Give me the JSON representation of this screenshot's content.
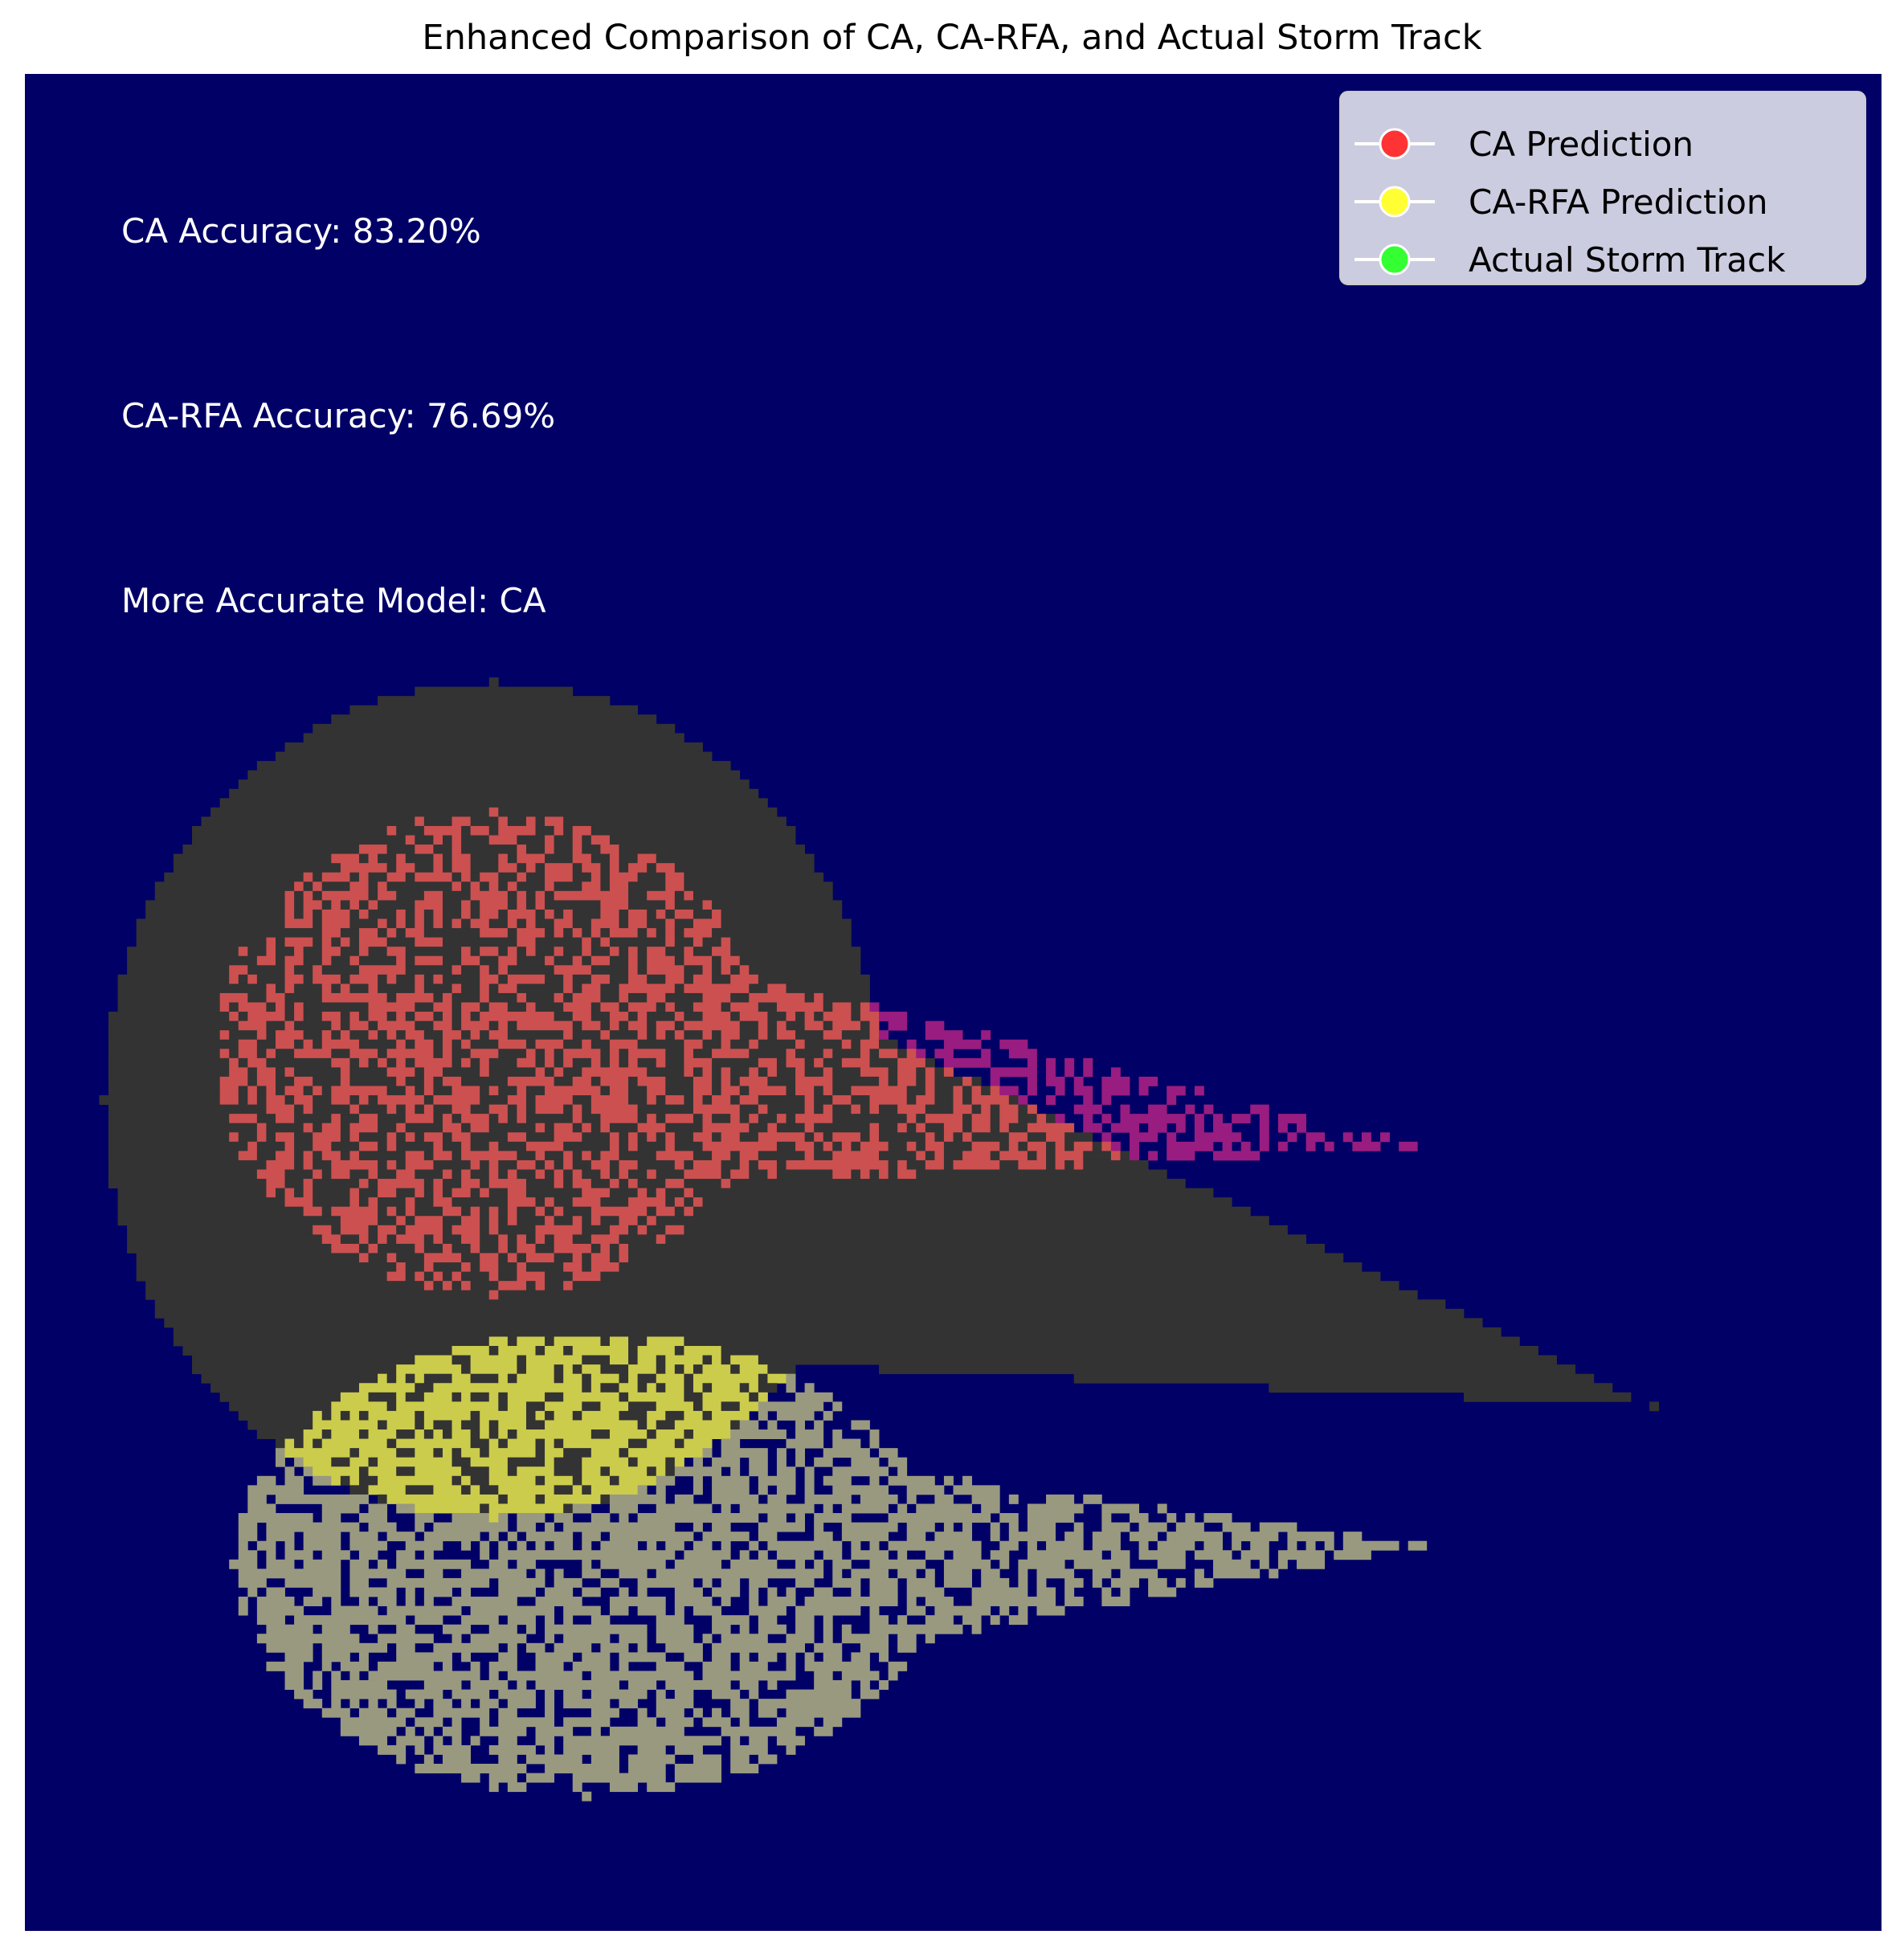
{
  "chart_data": {
    "type": "heatmap",
    "title": "Enhanced Comparison of CA, CA-RFA, and Actual Storm Track",
    "xlabel": "",
    "ylabel": "",
    "axes_visible": false,
    "grid": false,
    "grid_size": [
      200,
      200
    ],
    "colors": {
      "background": "#000066",
      "storm_track": "#333333",
      "ca_overlap": "#cc5050",
      "carfa_overlap": "#cccc4c",
      "carfa_only": "#999980",
      "ca_only": "#991c80"
    },
    "annotations": [
      {
        "text": "CA Accuracy: 83.20%"
      },
      {
        "text": "CA-RFA Accuracy: 76.69%"
      },
      {
        "text": "More Accurate Model: CA"
      }
    ],
    "legend": {
      "placement": "top-right",
      "entries": [
        {
          "label": "CA Prediction",
          "color": "#ff3333"
        },
        {
          "label": "CA-RFA Prediction",
          "color": "#ffff33"
        },
        {
          "label": "Actual Storm Track",
          "color": "#33ff33"
        }
      ]
    },
    "series": [
      {
        "role": "Actual Storm Track",
        "center_x": 50,
        "center_y": 110,
        "radius_x": 42,
        "radius_y": 45,
        "tail_end_x": 175,
        "tail_end_y": 143,
        "shape": "comet"
      },
      {
        "role": "CA Prediction",
        "center_x": 50,
        "center_y": 105,
        "radius_x": 30,
        "radius_y": 26,
        "tail_end_x": 150,
        "tail_end_y": 115,
        "fill_density": 0.5,
        "accuracy_percent": 83.2
      },
      {
        "role": "CA-RFA Prediction",
        "center_x": 60,
        "center_y": 160,
        "radius_x": 38,
        "radius_y": 25,
        "tail_end_x": 150,
        "tail_end_y": 158,
        "fill_density": 0.7,
        "accuracy_percent": 76.69
      }
    ]
  }
}
